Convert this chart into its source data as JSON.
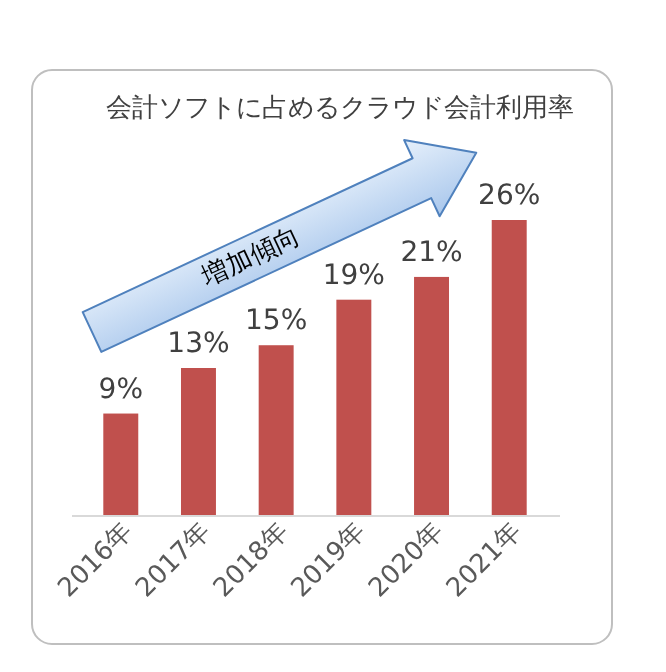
{
  "chart_data": {
    "type": "bar",
    "title": "会計ソフトに占めるクラウド会計利用率",
    "categories": [
      "2016年",
      "2017年",
      "2018年",
      "2019年",
      "2020年",
      "2021年"
    ],
    "values": [
      9,
      13,
      15,
      19,
      21,
      26
    ],
    "color": "#c0504d",
    "value_labels": [
      "9%",
      "13%",
      "15%",
      "19%",
      "21%",
      "26%"
    ],
    "annotations": [
      "増加傾向"
    ]
  }
}
